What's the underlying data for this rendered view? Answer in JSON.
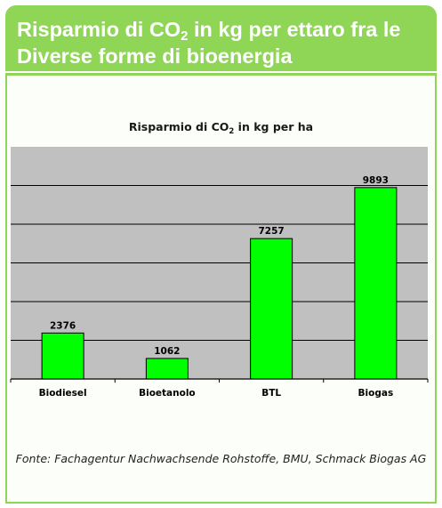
{
  "header": {
    "title_part1": "Risparmio di CO",
    "title_sub": "2",
    "title_part2": " in kg per ettaro fra le",
    "title_line2": "Diverse forme di bioenergia"
  },
  "chart_data": {
    "type": "bar",
    "title_part1": "Risparmio di CO",
    "title_sub": "2",
    "title_part2": " in kg per ha",
    "categories": [
      "Biodiesel",
      "Bioetanolo",
      "BTL",
      "Biogas"
    ],
    "values": [
      2376,
      1062,
      7257,
      9893
    ],
    "xlabel": "",
    "ylabel": "",
    "ylim": [
      0,
      12000
    ],
    "grid": true,
    "legend": "none",
    "bar_color": "#00ff00",
    "plot_background": "#c0c0c0"
  },
  "source": "Fonte: Fachagentur Nachwachsende Rohstoffe, BMU, Schmack Biogas AG"
}
